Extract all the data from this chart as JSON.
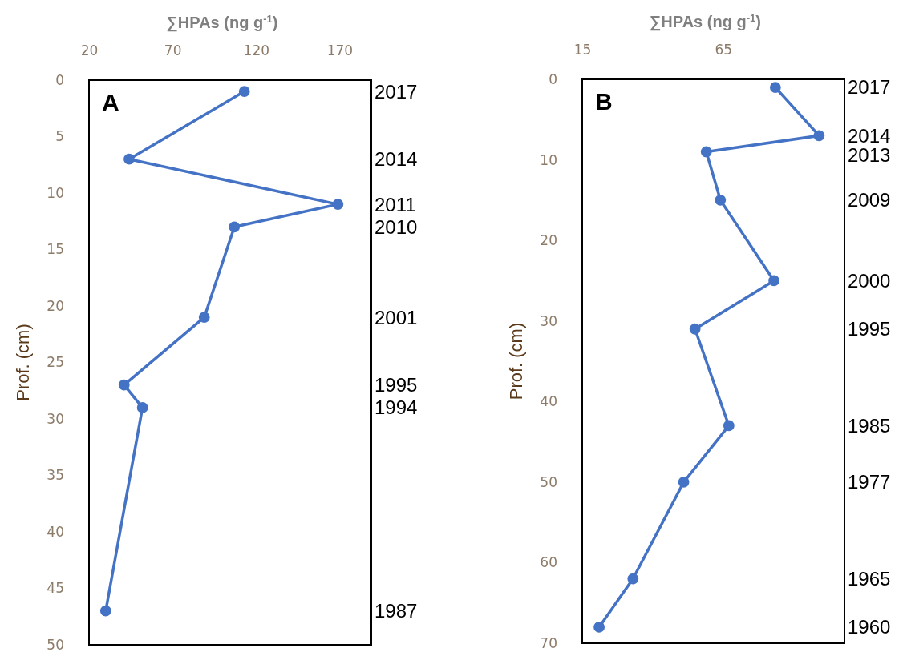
{
  "chart_data": [
    {
      "type": "line",
      "title": "A",
      "xlabel": "∑HPAs (ng g$^{-1}$)",
      "ylabel": "Prof. (cm)",
      "color": "#4472c4",
      "marker": "circle",
      "grid": false,
      "x": [
        113,
        44,
        169,
        107,
        89,
        41,
        52,
        30
      ],
      "values": [
        1,
        7,
        11,
        13,
        21,
        27,
        29,
        47
      ],
      "xlim": [
        20,
        189
      ],
      "xticks": [
        20,
        70,
        120,
        170
      ],
      "ylim": [
        50,
        0
      ],
      "yticks": [
        0,
        5,
        10,
        15,
        20,
        25,
        30,
        35,
        40,
        45,
        50
      ],
      "annotations": [
        "2017",
        "2014",
        "2011",
        "2010",
        "2001",
        "1995",
        "1994",
        "1987"
      ]
    },
    {
      "type": "line",
      "title": "B",
      "xlabel": "∑HPAs (ng g$^{-1}$)",
      "ylabel": "Prof. (cm)",
      "color": "#4472c4",
      "marker": "circle",
      "grid": false,
      "x": [
        83.5,
        99,
        59,
        64,
        83,
        55,
        67,
        51,
        33,
        21
      ],
      "values": [
        1,
        7,
        9,
        15,
        25,
        31,
        43,
        50,
        62,
        68
      ],
      "xlim": [
        15,
        108
      ],
      "xticks": [
        15,
        65
      ],
      "ylim": [
        70,
        0
      ],
      "yticks": [
        0,
        10,
        20,
        30,
        40,
        50,
        60,
        70
      ],
      "annotations": [
        "2017",
        "2014",
        "2013",
        "2009",
        "2000",
        "1995",
        "1985",
        "1977",
        "1965",
        "1960"
      ]
    }
  ]
}
